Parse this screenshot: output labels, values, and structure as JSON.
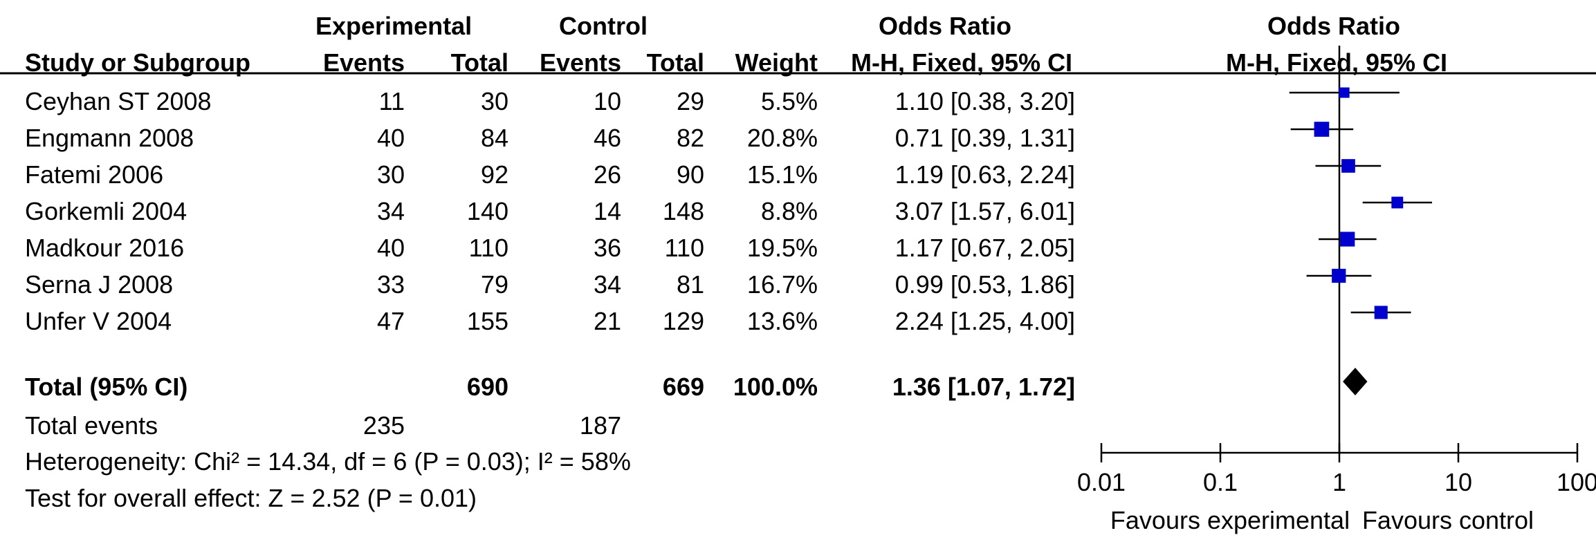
{
  "header": {
    "group_experimental": "Experimental",
    "group_control": "Control",
    "odds_ratio_title": "Odds Ratio",
    "plot_title": "Odds Ratio",
    "col_study": "Study or Subgroup",
    "col_exp_events": "Events",
    "col_exp_total": "Total",
    "col_ctrl_events": "Events",
    "col_ctrl_total": "Total",
    "col_weight": "Weight",
    "col_method": "M-H, Fixed, 95% CI",
    "plot_method": "M-H, Fixed, 95% CI"
  },
  "rows": [
    {
      "study": "Ceyhan ST 2008",
      "exp_events": "11",
      "exp_total": "30",
      "ctrl_events": "10",
      "ctrl_total": "29",
      "weight": "5.5%",
      "ci_text": "1.10 [0.38, 3.20]"
    },
    {
      "study": "Engmann 2008",
      "exp_events": "40",
      "exp_total": "84",
      "ctrl_events": "46",
      "ctrl_total": "82",
      "weight": "20.8%",
      "ci_text": "0.71 [0.39, 1.31]"
    },
    {
      "study": "Fatemi 2006",
      "exp_events": "30",
      "exp_total": "92",
      "ctrl_events": "26",
      "ctrl_total": "90",
      "weight": "15.1%",
      "ci_text": "1.19 [0.63, 2.24]"
    },
    {
      "study": "Gorkemli 2004",
      "exp_events": "34",
      "exp_total": "140",
      "ctrl_events": "14",
      "ctrl_total": "148",
      "weight": "8.8%",
      "ci_text": "3.07 [1.57, 6.01]"
    },
    {
      "study": "Madkour 2016",
      "exp_events": "40",
      "exp_total": "110",
      "ctrl_events": "36",
      "ctrl_total": "110",
      "weight": "19.5%",
      "ci_text": "1.17 [0.67, 2.05]"
    },
    {
      "study": "Serna J 2008",
      "exp_events": "33",
      "exp_total": "79",
      "ctrl_events": "34",
      "ctrl_total": "81",
      "weight": "16.7%",
      "ci_text": "0.99 [0.53, 1.86]"
    },
    {
      "study": "Unfer V 2004",
      "exp_events": "47",
      "exp_total": "155",
      "ctrl_events": "21",
      "ctrl_total": "129",
      "weight": "13.6%",
      "ci_text": "2.24 [1.25, 4.00]"
    }
  ],
  "total": {
    "label": "Total (95% CI)",
    "exp_total": "690",
    "ctrl_total": "669",
    "weight": "100.0%",
    "ci_text": "1.36 [1.07, 1.72]"
  },
  "events": {
    "label": "Total events",
    "exp": "235",
    "ctrl": "187"
  },
  "heterogeneity": "Heterogeneity: Chi² = 14.34, df = 6 (P = 0.03); I² = 58%",
  "overall_effect": "Test for overall effect: Z = 2.52 (P = 0.01)",
  "colors": {
    "marker": "#0000cc",
    "diamond": "#000000",
    "line": "#000000"
  },
  "chart_data": {
    "type": "scatter",
    "title": "Odds Ratio",
    "subtitle": "M-H, Fixed, 95% CI",
    "x_scale": "log",
    "xlim": [
      0.01,
      100
    ],
    "x_ticks": [
      0.01,
      0.1,
      1,
      10,
      100
    ],
    "x_tick_labels": [
      "0.01",
      "0.1",
      "1",
      "10",
      "100"
    ],
    "reference_line": 1,
    "left_label": "Favours experimental",
    "right_label": "Favours control",
    "studies": [
      {
        "name": "Ceyhan ST 2008",
        "or": 1.1,
        "lo": 0.38,
        "hi": 3.2,
        "weight": 5.5
      },
      {
        "name": "Engmann 2008",
        "or": 0.71,
        "lo": 0.39,
        "hi": 1.31,
        "weight": 20.8
      },
      {
        "name": "Fatemi 2006",
        "or": 1.19,
        "lo": 0.63,
        "hi": 2.24,
        "weight": 15.1
      },
      {
        "name": "Gorkemli 2004",
        "or": 3.07,
        "lo": 1.57,
        "hi": 6.01,
        "weight": 8.8
      },
      {
        "name": "Madkour 2016",
        "or": 1.17,
        "lo": 0.67,
        "hi": 2.05,
        "weight": 19.5
      },
      {
        "name": "Serna J 2008",
        "or": 0.99,
        "lo": 0.53,
        "hi": 1.86,
        "weight": 16.7
      },
      {
        "name": "Unfer V 2004",
        "or": 2.24,
        "lo": 1.25,
        "hi": 4.0,
        "weight": 13.6
      }
    ],
    "pooled": {
      "or": 1.36,
      "lo": 1.07,
      "hi": 1.72
    }
  }
}
